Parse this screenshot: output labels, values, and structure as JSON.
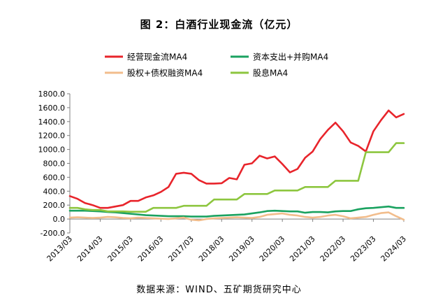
{
  "title": "图 2：白酒行业现金流（亿元）",
  "source": "数据来源：WIND、五矿期货研究中心",
  "chart_data": {
    "type": "line",
    "title": "图 2：白酒行业现金流（亿元）",
    "xlabel": "",
    "ylabel": "",
    "ylim": [
      -200,
      1800
    ],
    "y_ticks": [
      "-200.0",
      "0.0",
      "200.0",
      "400.0",
      "600.0",
      "800.0",
      "1000.0",
      "1200.0",
      "1400.0",
      "1600.0",
      "1800.0"
    ],
    "x_ticks": [
      "2013/03",
      "2014/03",
      "2015/03",
      "2016/03",
      "2017/03",
      "2018/03",
      "2019/03",
      "2020/03",
      "2021/03",
      "2022/03",
      "2023/03",
      "2024/03"
    ],
    "grid": false,
    "legend_position": "top",
    "x_start": "2013/03",
    "x_step": "quarter",
    "series": [
      {
        "name": "经营现金流MA4",
        "color": "#e8242b",
        "values": [
          330,
          290,
          230,
          200,
          160,
          160,
          180,
          200,
          260,
          260,
          310,
          340,
          390,
          460,
          650,
          665,
          650,
          560,
          510,
          510,
          515,
          590,
          570,
          780,
          800,
          910,
          870,
          900,
          790,
          670,
          720,
          880,
          970,
          1150,
          1280,
          1385,
          1260,
          1100,
          1050,
          970,
          1260,
          1420,
          1560,
          1460,
          1510
        ]
      },
      {
        "name": "资本支出+并购MA4",
        "color": "#1aa260",
        "values": [
          120,
          120,
          120,
          115,
          110,
          100,
          95,
          85,
          75,
          65,
          55,
          50,
          45,
          40,
          40,
          40,
          35,
          35,
          35,
          45,
          50,
          55,
          60,
          65,
          80,
          95,
          115,
          120,
          115,
          110,
          110,
          90,
          100,
          100,
          95,
          110,
          115,
          115,
          140,
          155,
          160,
          170,
          180,
          160,
          160
        ]
      },
      {
        "name": "股权+债权融资MA4",
        "color": "#f2bd8c",
        "values": [
          20,
          25,
          20,
          15,
          20,
          30,
          25,
          15,
          10,
          20,
          15,
          10,
          5,
          0,
          10,
          20,
          -10,
          -20,
          0,
          10,
          15,
          20,
          25,
          20,
          15,
          30,
          60,
          70,
          80,
          60,
          50,
          30,
          20,
          30,
          50,
          60,
          40,
          10,
          20,
          30,
          60,
          85,
          95,
          40,
          -10
        ]
      },
      {
        "name": "股息MA4",
        "color": "#8dc63f",
        "values": [
          160,
          160,
          140,
          130,
          130,
          110,
          110,
          110,
          105,
          105,
          105,
          160,
          160,
          160,
          160,
          190,
          190,
          190,
          190,
          280,
          280,
          280,
          280,
          360,
          360,
          360,
          360,
          410,
          410,
          410,
          410,
          460,
          460,
          460,
          460,
          550,
          550,
          550,
          550,
          960,
          960,
          960,
          960,
          1090,
          1090
        ]
      }
    ]
  }
}
